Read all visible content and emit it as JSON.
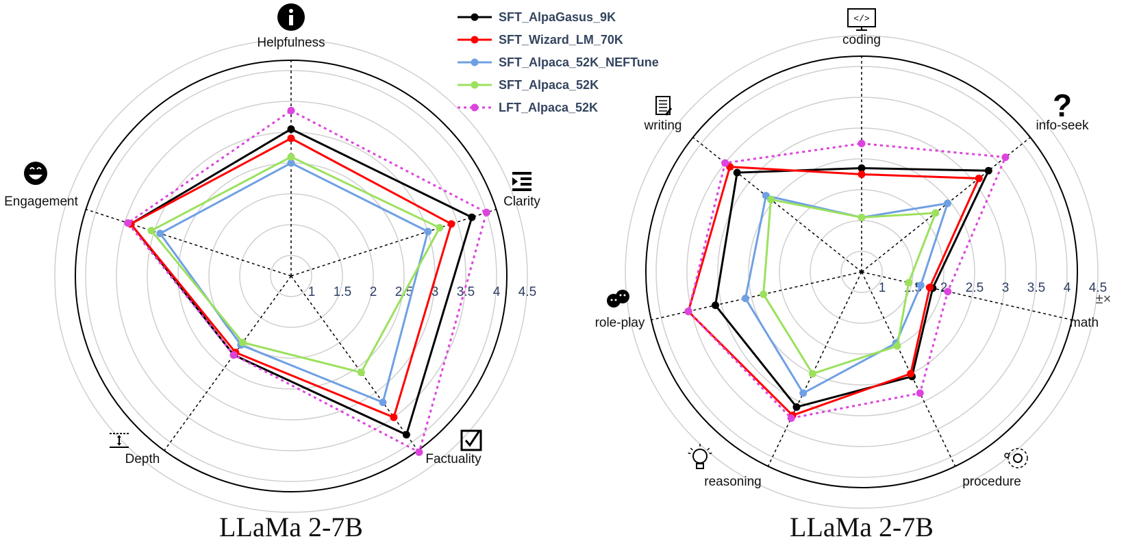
{
  "legend": [
    {
      "name": "SFT_AlpaGasus_9K",
      "color": "#000000",
      "dash": false
    },
    {
      "name": "SFT_Wizard_LM_70K",
      "color": "#ff0000",
      "dash": false
    },
    {
      "name": "SFT_Alpaca_52K_NEFTune",
      "color": "#6fa0e3",
      "dash": false
    },
    {
      "name": "SFT_Alpaca_52K",
      "color": "#9be15d",
      "dash": false
    },
    {
      "name": "LFT_Alpaca_52K",
      "color": "#dd44dd",
      "dash": true
    }
  ],
  "chart_data": [
    {
      "type": "radar",
      "title": "LLaMa 2-7B",
      "axes": [
        "Helpfulness",
        "Clarity",
        "Factuality",
        "Depth",
        "Engagement"
      ],
      "axis_icons": [
        "info-icon",
        "indent-list-icon",
        "checkbox-icon",
        "depth-icon",
        "smiley-icon"
      ],
      "ticks": [
        "1",
        "1.5",
        "2",
        "2.5",
        "3",
        "3.5",
        "4",
        "4.5"
      ],
      "range": [
        1,
        5
      ],
      "grid": true,
      "series": [
        {
          "name": "SFT_AlpaGasus_9K",
          "values": [
            3.05,
            3.75,
            3.85,
            2.25,
            3.4
          ]
        },
        {
          "name": "SFT_Wizard_LM_70K",
          "values": [
            2.9,
            3.4,
            3.5,
            2.2,
            3.4
          ]
        },
        {
          "name": "SFT_Alpaca_52K_NEFTune",
          "values": [
            2.5,
            3.0,
            3.2,
            2.05,
            2.9
          ]
        },
        {
          "name": "SFT_Alpaca_52K",
          "values": [
            2.6,
            3.2,
            2.6,
            2.0,
            3.05
          ]
        },
        {
          "name": "LFT_Alpaca_52K",
          "values": [
            3.35,
            4.0,
            4.2,
            2.25,
            3.45
          ]
        }
      ]
    },
    {
      "type": "radar",
      "title": "LLaMa 2-7B",
      "axes": [
        "coding",
        "info-seek",
        "math",
        "procedure",
        "reasoning",
        "role-play",
        "writing"
      ],
      "axis_icons": [
        "code-icon",
        "question-icon",
        "math-icon",
        "gear-process-icon",
        "lightbulb-icon",
        "drama-masks-icon",
        "document-pen-icon"
      ],
      "ticks": [
        "1",
        "1.5",
        "2",
        "2.5",
        "3",
        "3.5",
        "4",
        "4.5"
      ],
      "range": [
        1,
        5
      ],
      "grid": true,
      "series": [
        {
          "name": "SFT_AlpaGasus_9K",
          "values": [
            2.35,
            3.3,
            1.85,
            2.55,
            3.1,
            3.1,
            3.25
          ]
        },
        {
          "name": "SFT_Wizard_LM_70K",
          "values": [
            2.25,
            3.1,
            1.8,
            2.5,
            3.25,
            3.55,
            3.4
          ]
        },
        {
          "name": "SFT_Alpaca_52K_NEFTune",
          "values": [
            1.55,
            2.45,
            1.65,
            1.95,
            2.85,
            2.6,
            2.65
          ]
        },
        {
          "name": "SFT_Alpaca_52K",
          "values": [
            1.55,
            2.2,
            1.45,
            2.0,
            2.5,
            2.3,
            2.55
          ]
        },
        {
          "name": "LFT_Alpaca_52K",
          "values": [
            2.75,
            3.65,
            2.1,
            2.85,
            3.3,
            3.55,
            3.5
          ]
        }
      ]
    }
  ]
}
